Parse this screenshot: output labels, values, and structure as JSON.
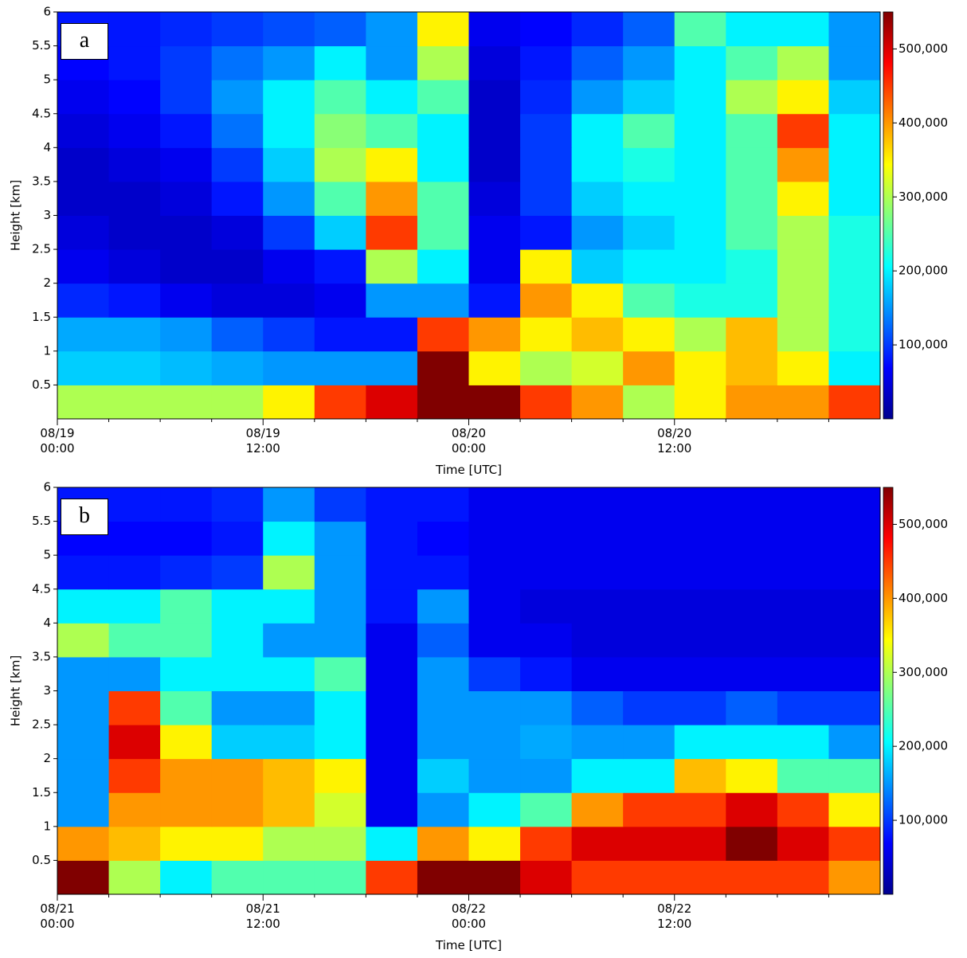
{
  "chart_data": [
    {
      "type": "heatmap",
      "label": "a",
      "xlabel": "Time [UTC]",
      "ylabel": "Height [km]",
      "colormap": "jet",
      "xlim": [
        0,
        48
      ],
      "xticks": [
        {
          "value": 0,
          "label": "08/19\n00:00"
        },
        {
          "value": 12,
          "label": "08/19\n12:00"
        },
        {
          "value": 24,
          "label": "08/20\n00:00"
        },
        {
          "value": 36,
          "label": "08/20\n12:00"
        }
      ],
      "xticks_minor": [
        3,
        6,
        9,
        15,
        18,
        21,
        27,
        30,
        33,
        39,
        42,
        45
      ],
      "ylim": [
        0,
        6
      ],
      "yticks": [
        0.5,
        1,
        1.5,
        2,
        2.5,
        3,
        3.5,
        4,
        4.5,
        5,
        5.5,
        6
      ],
      "clim": [
        0,
        550000
      ],
      "cticks": [
        {
          "value": 100000,
          "label": "100,000"
        },
        {
          "value": 200000,
          "label": "200,000"
        },
        {
          "value": 300000,
          "label": "300,000"
        },
        {
          "value": 400000,
          "label": "400,000"
        },
        {
          "value": 500000,
          "label": "500,000"
        }
      ],
      "x_edges": [
        0,
        3,
        6,
        9,
        12,
        15,
        18,
        21,
        24,
        27,
        30,
        33,
        36,
        39,
        42,
        45,
        48
      ],
      "y_edges": [
        0,
        0.5,
        1,
        1.5,
        2,
        2.5,
        3,
        3.5,
        4,
        4.5,
        5,
        5.5,
        6
      ],
      "z": [
        [
          300000,
          300000,
          300000,
          300000,
          350000,
          450000,
          500000,
          550000,
          550000,
          450000,
          400000,
          300000,
          350000,
          400000,
          400000,
          450000
        ],
        [
          180000,
          180000,
          170000,
          160000,
          150000,
          150000,
          150000,
          550000,
          350000,
          300000,
          320000,
          400000,
          350000,
          380000,
          350000,
          200000
        ],
        [
          160000,
          160000,
          150000,
          120000,
          100000,
          80000,
          80000,
          450000,
          400000,
          350000,
          380000,
          350000,
          300000,
          380000,
          300000,
          220000
        ],
        [
          90000,
          80000,
          60000,
          50000,
          50000,
          60000,
          150000,
          150000,
          80000,
          400000,
          350000,
          250000,
          220000,
          220000,
          300000,
          220000
        ],
        [
          60000,
          50000,
          40000,
          40000,
          60000,
          80000,
          300000,
          200000,
          60000,
          350000,
          180000,
          200000,
          200000,
          220000,
          300000,
          220000
        ],
        [
          50000,
          40000,
          40000,
          50000,
          100000,
          180000,
          450000,
          250000,
          60000,
          80000,
          150000,
          180000,
          200000,
          250000,
          300000,
          220000
        ],
        [
          40000,
          40000,
          50000,
          80000,
          150000,
          250000,
          400000,
          250000,
          50000,
          100000,
          180000,
          200000,
          200000,
          250000,
          350000,
          200000
        ],
        [
          40000,
          50000,
          60000,
          100000,
          180000,
          300000,
          350000,
          200000,
          40000,
          100000,
          200000,
          220000,
          200000,
          250000,
          400000,
          200000
        ],
        [
          50000,
          60000,
          80000,
          130000,
          200000,
          280000,
          250000,
          200000,
          40000,
          100000,
          200000,
          250000,
          200000,
          250000,
          450000,
          200000
        ],
        [
          60000,
          70000,
          100000,
          150000,
          200000,
          250000,
          200000,
          250000,
          40000,
          90000,
          150000,
          180000,
          200000,
          300000,
          350000,
          180000
        ],
        [
          70000,
          80000,
          100000,
          130000,
          150000,
          200000,
          150000,
          300000,
          50000,
          80000,
          120000,
          150000,
          200000,
          250000,
          300000,
          150000
        ],
        [
          80000,
          80000,
          90000,
          100000,
          110000,
          120000,
          150000,
          350000,
          60000,
          70000,
          90000,
          120000,
          250000,
          200000,
          200000,
          150000
        ]
      ]
    },
    {
      "type": "heatmap",
      "label": "b",
      "xlabel": "Time [UTC]",
      "ylabel": "Height [km]",
      "colormap": "jet",
      "xlim": [
        0,
        48
      ],
      "xticks": [
        {
          "value": 0,
          "label": "08/21\n00:00"
        },
        {
          "value": 12,
          "label": "08/21\n12:00"
        },
        {
          "value": 24,
          "label": "08/22\n00:00"
        },
        {
          "value": 36,
          "label": "08/22\n12:00"
        }
      ],
      "xticks_minor": [
        3,
        6,
        9,
        15,
        18,
        21,
        27,
        30,
        33,
        39,
        42,
        45
      ],
      "ylim": [
        0,
        6
      ],
      "yticks": [
        0.5,
        1,
        1.5,
        2,
        2.5,
        3,
        3.5,
        4,
        4.5,
        5,
        5.5,
        6
      ],
      "clim": [
        0,
        550000
      ],
      "cticks": [
        {
          "value": 100000,
          "label": "100,000"
        },
        {
          "value": 200000,
          "label": "200,000"
        },
        {
          "value": 300000,
          "label": "300,000"
        },
        {
          "value": 400000,
          "label": "400,000"
        },
        {
          "value": 500000,
          "label": "500,000"
        }
      ],
      "x_edges": [
        0,
        3,
        6,
        9,
        12,
        15,
        18,
        21,
        24,
        27,
        30,
        33,
        36,
        39,
        42,
        45,
        48
      ],
      "y_edges": [
        0,
        0.5,
        1,
        1.5,
        2,
        2.5,
        3,
        3.5,
        4,
        4.5,
        5,
        5.5,
        6
      ],
      "z": [
        [
          550000,
          300000,
          200000,
          250000,
          250000,
          250000,
          450000,
          550000,
          550000,
          500000,
          450000,
          450000,
          450000,
          450000,
          450000,
          400000
        ],
        [
          400000,
          380000,
          350000,
          350000,
          300000,
          300000,
          200000,
          400000,
          350000,
          450000,
          500000,
          500000,
          500000,
          550000,
          500000,
          450000
        ],
        [
          150000,
          400000,
          400000,
          400000,
          380000,
          320000,
          60000,
          150000,
          200000,
          250000,
          400000,
          450000,
          450000,
          500000,
          450000,
          350000
        ],
        [
          150000,
          450000,
          400000,
          400000,
          380000,
          350000,
          60000,
          180000,
          150000,
          150000,
          200000,
          200000,
          380000,
          350000,
          250000,
          250000
        ],
        [
          150000,
          500000,
          350000,
          180000,
          180000,
          200000,
          60000,
          150000,
          150000,
          160000,
          150000,
          150000,
          200000,
          200000,
          200000,
          150000
        ],
        [
          150000,
          450000,
          250000,
          150000,
          150000,
          200000,
          60000,
          150000,
          150000,
          150000,
          120000,
          100000,
          100000,
          120000,
          100000,
          100000
        ],
        [
          150000,
          150000,
          200000,
          200000,
          200000,
          250000,
          60000,
          150000,
          100000,
          80000,
          60000,
          60000,
          60000,
          60000,
          60000,
          60000
        ],
        [
          300000,
          250000,
          250000,
          200000,
          150000,
          150000,
          60000,
          120000,
          60000,
          60000,
          50000,
          50000,
          50000,
          50000,
          50000,
          50000
        ],
        [
          200000,
          200000,
          250000,
          200000,
          200000,
          150000,
          80000,
          150000,
          60000,
          50000,
          50000,
          50000,
          50000,
          50000,
          50000,
          50000
        ],
        [
          80000,
          80000,
          90000,
          100000,
          300000,
          150000,
          80000,
          80000,
          60000,
          60000,
          60000,
          60000,
          60000,
          60000,
          60000,
          60000
        ],
        [
          70000,
          70000,
          70000,
          80000,
          200000,
          150000,
          80000,
          70000,
          60000,
          60000,
          60000,
          60000,
          60000,
          60000,
          60000,
          60000
        ],
        [
          80000,
          80000,
          80000,
          90000,
          150000,
          100000,
          80000,
          80000,
          60000,
          60000,
          60000,
          60000,
          60000,
          60000,
          60000,
          60000
        ]
      ]
    }
  ]
}
